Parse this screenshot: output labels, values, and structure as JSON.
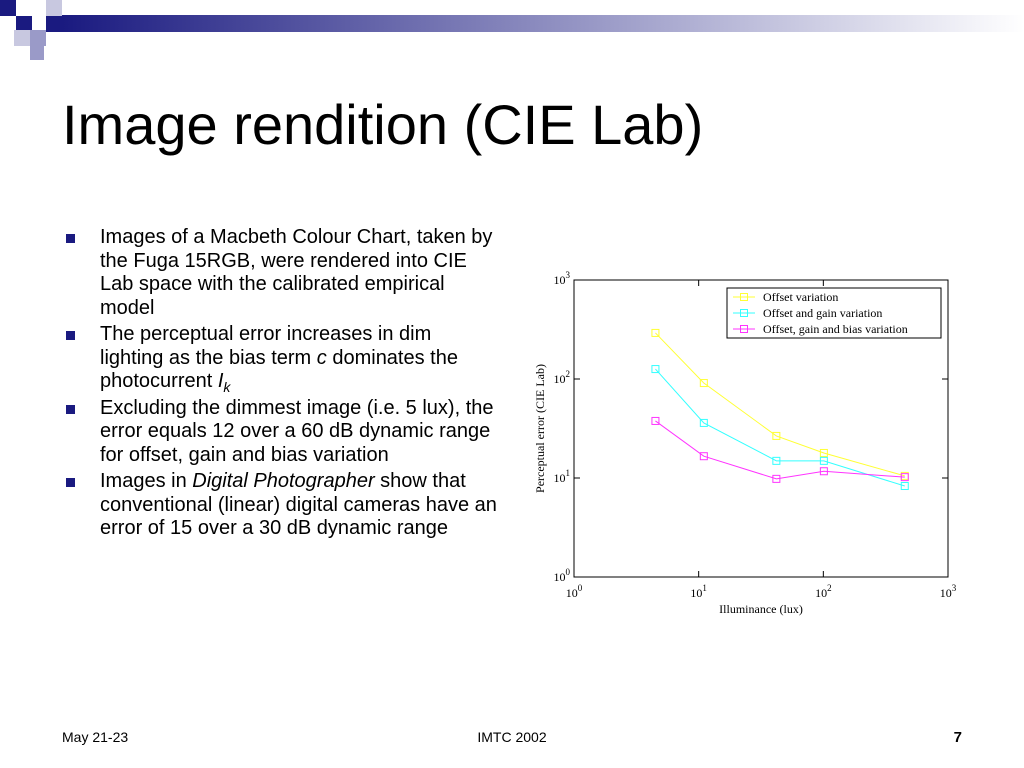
{
  "header": {
    "title": "Image rendition (CIE Lab)"
  },
  "bullets": [
    [
      {
        "text": "Images of a Macbeth Colour Chart, taken by the Fuga 15RGB, were rendered into CIE Lab space with the calibrated empirical model"
      }
    ],
    [
      {
        "text": "The perceptual error increases in dim lighting as the bias term "
      },
      {
        "text": "c",
        "style": "italic"
      },
      {
        "text": " dominates the photocurrent "
      },
      {
        "text": "I",
        "style": "italic"
      },
      {
        "text": "k",
        "style": "italic-sub"
      }
    ],
    [
      {
        "text": "Excluding the dimmest image (i.e. 5 lux), the error equals 12 over a 60 dB dynamic range for offset, gain and bias variation"
      }
    ],
    [
      {
        "text": "Images in "
      },
      {
        "text": "Digital Photographer",
        "style": "italic"
      },
      {
        "text": " show that conventional (linear) digital cameras have an error of 15 over a 30 dB dynamic range"
      }
    ]
  ],
  "chart_data": {
    "type": "line",
    "x_label": "Illuminance (lux)",
    "y_label": "Perceptual error (CIE Lab)",
    "log_x": true,
    "log_y": true,
    "xlim": [
      1,
      1000
    ],
    "ylim": [
      1,
      1000
    ],
    "xticks": [
      {
        "value": 1,
        "label": "10",
        "exponent": "0"
      },
      {
        "value": 10,
        "label": "10",
        "exponent": "1"
      },
      {
        "value": 100,
        "label": "10",
        "exponent": "2"
      },
      {
        "value": 1000,
        "label": "10",
        "exponent": "3"
      }
    ],
    "yticks": [
      {
        "value": 1,
        "label": "10",
        "exponent": "0"
      },
      {
        "value": 10,
        "label": "10",
        "exponent": "1"
      },
      {
        "value": 100,
        "label": "10",
        "exponent": "2"
      },
      {
        "value": 1000,
        "label": "10",
        "exponent": "3"
      }
    ],
    "legend": "upper right",
    "x": [
      4.5,
      11,
      42,
      101,
      450
    ],
    "series": [
      {
        "name": "Offset variation",
        "color": "#ffff33",
        "values": [
          292,
          91,
          26.6,
          17.9,
          10.5
        ]
      },
      {
        "name": "Offset and gain variation",
        "color": "#33ffff",
        "values": [
          126,
          36,
          14.9,
          14.9,
          8.3
        ]
      },
      {
        "name": "Offset, gain and bias variation",
        "color": "#ff33ff",
        "values": [
          37.7,
          16.6,
          9.8,
          11.7,
          10.2
        ]
      }
    ]
  },
  "footer": {
    "left": "May 21-23",
    "center": "IMTC 2002",
    "right": "7"
  }
}
